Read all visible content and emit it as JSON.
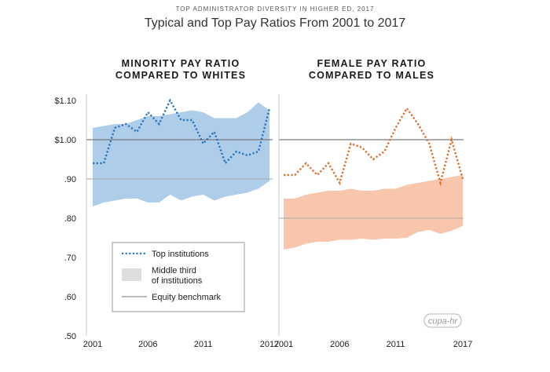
{
  "header": {
    "kicker": "TOP ADMINISTRATOR DIVERSITY IN HIGHER ED, 2017",
    "title": "Typical and Top Pay Ratios From 2001 to 2017"
  },
  "logo_text": "cupa-hr",
  "colors": {
    "minority_line": "#2a74bc",
    "minority_band": "#aecde8",
    "female_line": "#e06b25",
    "female_band": "#f8c6ad",
    "benchmark": "#7a7a7a",
    "legend_band": "#dedede",
    "legend_line": "#2a74bc"
  },
  "legend": {
    "top": "Top institutions",
    "middle_line1": "Middle third",
    "middle_line2": "of institutions",
    "equity": "Equity benchmark"
  },
  "chart_data": [
    {
      "type": "line",
      "title_line1": "MINORITY PAY RATIO",
      "title_line2": "COMPARED TO WHITES",
      "x": [
        2001,
        2002,
        2003,
        2004,
        2005,
        2006,
        2007,
        2008,
        2009,
        2010,
        2011,
        2012,
        2013,
        2014,
        2015,
        2016,
        2017
      ],
      "xticks": [
        2001,
        2006,
        2011,
        2017
      ],
      "xtick_labels": [
        "2001",
        "2006",
        "2011",
        "2017"
      ],
      "ylim": [
        0.5,
        1.1
      ],
      "yticks": [
        0.5,
        0.6,
        0.7,
        0.8,
        0.9,
        1.0,
        1.1
      ],
      "ytick_labels": [
        ".50",
        ".60",
        ".70",
        ".80",
        ".90",
        "$1.00",
        "$1.10"
      ],
      "benchmark": 1.0,
      "secondary_line": 0.9,
      "series": [
        {
          "name": "Top institutions",
          "style": "dotted",
          "values": [
            0.94,
            0.94,
            1.03,
            1.04,
            1.02,
            1.07,
            1.04,
            1.1,
            1.05,
            1.05,
            0.99,
            1.02,
            0.94,
            0.97,
            0.96,
            0.97,
            1.08
          ]
        },
        {
          "name": "Middle third of institutions",
          "style": "band",
          "upper": [
            1.03,
            1.035,
            1.04,
            1.04,
            1.05,
            1.06,
            1.06,
            1.065,
            1.07,
            1.075,
            1.07,
            1.055,
            1.055,
            1.055,
            1.07,
            1.095,
            1.075
          ],
          "lower": [
            0.83,
            0.84,
            0.845,
            0.85,
            0.85,
            0.84,
            0.84,
            0.86,
            0.845,
            0.855,
            0.86,
            0.845,
            0.855,
            0.86,
            0.865,
            0.875,
            0.895
          ]
        }
      ]
    },
    {
      "type": "line",
      "title_line1": "FEMALE PAY RATIO",
      "title_line2": "COMPARED TO MALES",
      "x": [
        2001,
        2002,
        2003,
        2004,
        2005,
        2006,
        2007,
        2008,
        2009,
        2010,
        2011,
        2012,
        2013,
        2014,
        2015,
        2016,
        2017
      ],
      "xticks": [
        2001,
        2006,
        2011,
        2017
      ],
      "xtick_labels": [
        "2001",
        "2006",
        "2011",
        "2017"
      ],
      "ylim": [
        0.5,
        1.1
      ],
      "benchmark": 1.0,
      "secondary_line": 0.8,
      "series": [
        {
          "name": "Top institutions",
          "style": "dotted",
          "values": [
            0.91,
            0.91,
            0.94,
            0.91,
            0.94,
            0.89,
            0.99,
            0.98,
            0.95,
            0.97,
            1.03,
            1.08,
            1.04,
            0.99,
            0.89,
            1.0,
            0.9
          ]
        },
        {
          "name": "Middle third of institutions",
          "style": "band",
          "upper": [
            0.85,
            0.85,
            0.86,
            0.865,
            0.87,
            0.87,
            0.875,
            0.87,
            0.87,
            0.875,
            0.875,
            0.885,
            0.89,
            0.895,
            0.9,
            0.905,
            0.91
          ],
          "lower": [
            0.72,
            0.725,
            0.735,
            0.74,
            0.74,
            0.745,
            0.745,
            0.748,
            0.745,
            0.748,
            0.748,
            0.75,
            0.765,
            0.77,
            0.76,
            0.768,
            0.78
          ]
        }
      ]
    }
  ]
}
